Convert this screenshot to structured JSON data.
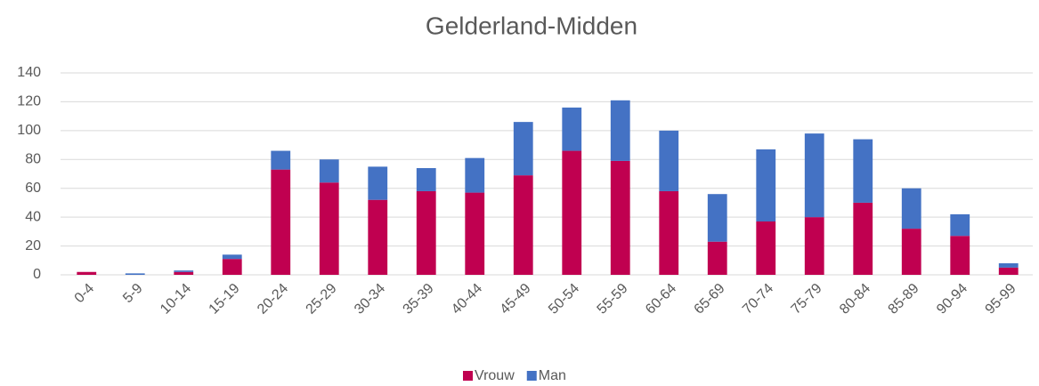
{
  "chart_data": {
    "type": "stacked_bar",
    "title": "Gelderland-Midden",
    "categories": [
      "0-4",
      "5-9",
      "10-14",
      "15-19",
      "20-24",
      "25-29",
      "30-34",
      "35-39",
      "40-44",
      "45-49",
      "50-54",
      "55-59",
      "60-64",
      "65-69",
      "70-74",
      "75-79",
      "80-84",
      "85-89",
      "90-94",
      "95-99"
    ],
    "series": [
      {
        "name": "Vrouw",
        "color": "#c00050",
        "values": [
          2,
          0,
          2,
          11,
          73,
          64,
          52,
          58,
          57,
          69,
          86,
          79,
          58,
          23,
          37,
          40,
          50,
          32,
          27,
          5
        ]
      },
      {
        "name": "Man",
        "color": "#4472c4",
        "values": [
          0,
          1,
          1,
          3,
          13,
          16,
          23,
          16,
          24,
          37,
          30,
          42,
          42,
          33,
          50,
          58,
          44,
          28,
          15,
          3
        ]
      }
    ],
    "ylim": [
      0,
      140
    ],
    "yticks": [
      0,
      20,
      40,
      60,
      80,
      100,
      120,
      140
    ],
    "grid": true,
    "legend": "bottom"
  }
}
